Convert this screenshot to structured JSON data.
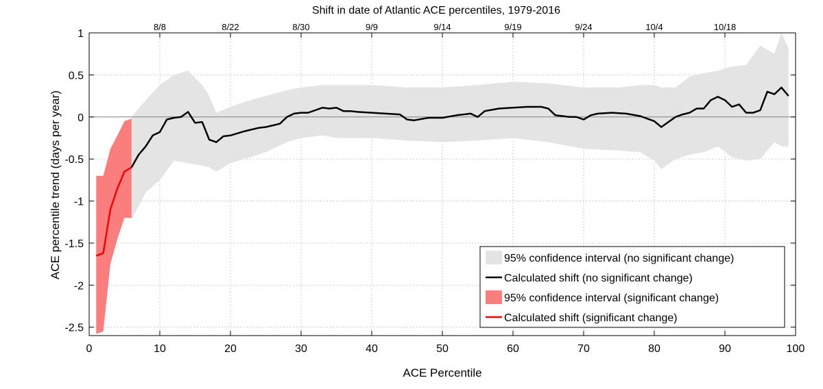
{
  "chart_data": {
    "type": "line",
    "title": "Shift in date of Atlantic ACE percentiles, 1979-2016",
    "xlabel": "ACE Percentile",
    "ylabel": "ACE percentile trend (days per year)",
    "xlim": [
      0,
      100
    ],
    "ylim": [
      -2.6,
      1
    ],
    "xticks": [
      0,
      10,
      20,
      30,
      40,
      50,
      60,
      70,
      80,
      90,
      100
    ],
    "xtick_labels": [
      "0",
      "10",
      "20",
      "30",
      "40",
      "50",
      "60",
      "70",
      "80",
      "90",
      "100"
    ],
    "yticks": [
      1,
      0.5,
      0,
      -0.5,
      -1,
      -1.5,
      -2,
      -2.5
    ],
    "ytick_labels": [
      "1",
      "0.5",
      "0",
      "-0.5",
      "-1",
      "-1.5",
      "-2",
      "-2.5"
    ],
    "top_axis": {
      "positions": [
        10,
        20,
        30,
        40,
        50,
        60,
        70,
        80,
        90
      ],
      "labels": [
        "8/8",
        "8/22",
        "8/30",
        "9/9",
        "9/14",
        "9/19",
        "9/24",
        "10/4",
        "10/18"
      ]
    },
    "grid": true,
    "legend_position": "bottom-right",
    "colors": {
      "ci_insignificant": "#e4e4e4",
      "shift_insignificant": "#000000",
      "ci_significant": "#fb7e7e",
      "shift_significant": "#ee0000",
      "grid": "#bcbcbc",
      "zero_line": "#808080"
    },
    "series": [
      {
        "name": "95% confidence interval (no significant change)",
        "kind": "band",
        "x": [
          6,
          8,
          10,
          12,
          14,
          16,
          17,
          18,
          20,
          22,
          25,
          28,
          30,
          33,
          35,
          40,
          45,
          50,
          55,
          60,
          65,
          70,
          75,
          78,
          80,
          81,
          83,
          85,
          87,
          89,
          91,
          93,
          95,
          97,
          98,
          99
        ],
        "upper": [
          0,
          0.2,
          0.38,
          0.5,
          0.55,
          0.38,
          0.25,
          0.05,
          0.12,
          0.18,
          0.25,
          0.32,
          0.35,
          0.38,
          0.38,
          0.38,
          0.35,
          0.35,
          0.38,
          0.42,
          0.4,
          0.35,
          0.35,
          0.38,
          0.38,
          0.35,
          0.35,
          0.48,
          0.52,
          0.55,
          0.6,
          0.62,
          0.85,
          0.75,
          1.0,
          0.82
        ],
        "lower": [
          -1.22,
          -0.9,
          -0.75,
          -0.52,
          -0.55,
          -0.58,
          -0.6,
          -0.65,
          -0.55,
          -0.5,
          -0.42,
          -0.3,
          -0.25,
          -0.22,
          -0.25,
          -0.25,
          -0.28,
          -0.3,
          -0.28,
          -0.25,
          -0.3,
          -0.38,
          -0.4,
          -0.42,
          -0.52,
          -0.62,
          -0.5,
          -0.45,
          -0.42,
          -0.35,
          -0.48,
          -0.52,
          -0.5,
          -0.3,
          -0.35,
          -0.35
        ]
      },
      {
        "name": "Calculated shift (no significant change)",
        "kind": "line",
        "x": [
          6,
          7,
          8,
          9,
          10,
          11,
          12,
          13,
          14,
          15,
          16,
          17,
          18,
          19,
          20,
          22,
          24,
          25,
          26,
          27,
          28,
          29,
          30,
          31,
          32,
          33,
          34,
          35,
          36,
          37,
          38,
          40,
          42,
          44,
          45,
          46,
          48,
          50,
          52,
          53,
          54,
          55,
          56,
          58,
          60,
          62,
          64,
          65,
          66,
          68,
          69,
          70,
          71,
          72,
          74,
          76,
          78,
          80,
          81,
          82,
          83,
          84,
          85,
          86,
          87,
          88,
          89,
          90,
          91,
          92,
          93,
          94,
          95,
          96,
          97,
          98,
          99
        ],
        "y": [
          -0.6,
          -0.45,
          -0.35,
          -0.22,
          -0.18,
          -0.03,
          -0.01,
          0.0,
          0.06,
          -0.07,
          -0.06,
          -0.27,
          -0.3,
          -0.23,
          -0.22,
          -0.17,
          -0.13,
          -0.12,
          -0.1,
          -0.08,
          0.0,
          0.04,
          0.05,
          0.05,
          0.08,
          0.11,
          0.1,
          0.11,
          0.07,
          0.07,
          0.06,
          0.05,
          0.04,
          0.03,
          -0.03,
          -0.04,
          -0.01,
          -0.01,
          0.02,
          0.03,
          0.04,
          0.0,
          0.07,
          0.1,
          0.11,
          0.12,
          0.12,
          0.1,
          0.02,
          0.0,
          0.0,
          -0.03,
          0.02,
          0.04,
          0.05,
          0.04,
          0.01,
          -0.05,
          -0.12,
          -0.06,
          0.0,
          0.03,
          0.05,
          0.1,
          0.1,
          0.2,
          0.24,
          0.2,
          0.12,
          0.15,
          0.05,
          0.05,
          0.08,
          0.3,
          0.27,
          0.35,
          0.25
        ]
      },
      {
        "name": "95% confidence interval (significant change)",
        "kind": "band",
        "x": [
          1,
          2,
          3,
          4,
          5,
          6
        ],
        "upper": [
          -0.7,
          -0.7,
          -0.38,
          -0.22,
          -0.05,
          -0.02
        ],
        "lower": [
          -2.58,
          -2.55,
          -1.75,
          -1.45,
          -1.2,
          -1.2
        ]
      },
      {
        "name": "Calculated shift (significant change)",
        "kind": "line",
        "x": [
          1,
          2,
          3,
          4,
          5,
          6
        ],
        "y": [
          -1.65,
          -1.62,
          -1.1,
          -0.85,
          -0.65,
          -0.6
        ]
      }
    ]
  }
}
